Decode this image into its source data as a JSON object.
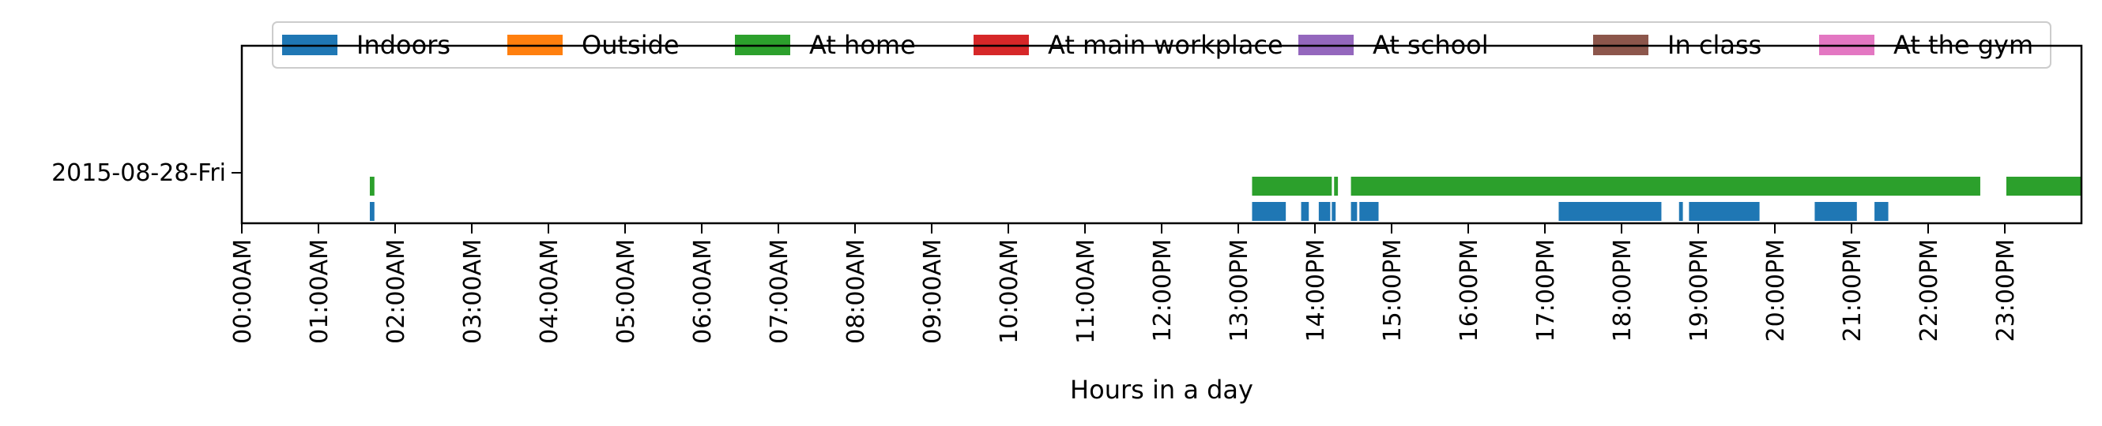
{
  "chart_data": {
    "type": "timeline",
    "xlabel": "Hours in a day",
    "ylabel": "",
    "title": "",
    "x_range_hours": [
      0,
      24
    ],
    "x_tick_labels": [
      "00:00AM",
      "01:00AM",
      "02:00AM",
      "03:00AM",
      "04:00AM",
      "05:00AM",
      "06:00AM",
      "07:00AM",
      "08:00AM",
      "09:00AM",
      "10:00AM",
      "11:00AM",
      "12:00PM",
      "13:00PM",
      "14:00PM",
      "15:00PM",
      "16:00PM",
      "17:00PM",
      "18:00PM",
      "19:00PM",
      "20:00PM",
      "21:00PM",
      "22:00PM",
      "23:00PM"
    ],
    "y_categories": [
      "2015-08-28-Fri"
    ],
    "legend_position": "top",
    "series": [
      {
        "name": "Indoors",
        "color": "#1f77b4",
        "intervals": [
          [
            1.67,
            1.73
          ],
          [
            13.18,
            13.62
          ],
          [
            13.82,
            13.92
          ],
          [
            14.05,
            14.2
          ],
          [
            14.22,
            14.27
          ],
          [
            14.47,
            14.55
          ],
          [
            14.58,
            14.83
          ],
          [
            17.18,
            18.52
          ],
          [
            18.75,
            18.8
          ],
          [
            18.88,
            19.8
          ],
          [
            20.52,
            21.07
          ],
          [
            21.3,
            21.48
          ]
        ]
      },
      {
        "name": "Outside",
        "color": "#ff7f0e",
        "intervals": []
      },
      {
        "name": "At home",
        "color": "#2ca02c",
        "intervals": [
          [
            1.67,
            1.73
          ],
          [
            13.18,
            14.22
          ],
          [
            14.25,
            14.3
          ],
          [
            14.47,
            22.68
          ],
          [
            23.02,
            24.0
          ]
        ]
      },
      {
        "name": "At main workplace",
        "color": "#d62728",
        "intervals": []
      },
      {
        "name": "At school",
        "color": "#9467bd",
        "intervals": []
      },
      {
        "name": "In class",
        "color": "#8c564b",
        "intervals": []
      },
      {
        "name": "At the gym",
        "color": "#e377c2",
        "intervals": []
      }
    ]
  }
}
